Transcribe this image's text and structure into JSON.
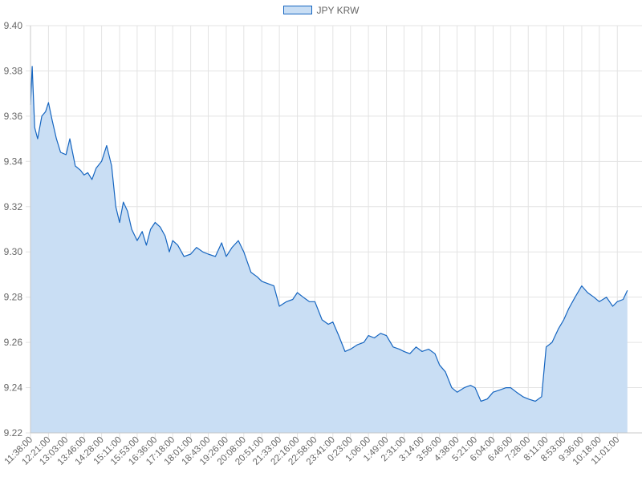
{
  "colors": {
    "line": "#1565c0",
    "fill": "#c9def4",
    "grid": "#e3e3e3",
    "axis": "#c8c8c8",
    "text": "#666666"
  },
  "chart_data": {
    "type": "area",
    "legend_position": "top-center",
    "grid": true,
    "ylim": [
      9.22,
      9.4
    ],
    "y_ticks": [
      "9.40",
      "9.38",
      "9.36",
      "9.34",
      "9.32",
      "9.30",
      "9.28",
      "9.26",
      "9.24",
      "9.22"
    ],
    "x_ticks": [
      "11:38:00",
      "12:21:00",
      "13:03:00",
      "13:46:00",
      "14:28:00",
      "15:11:00",
      "15:53:00",
      "16:36:00",
      "17:18:00",
      "18:01:00",
      "18:43:00",
      "19:26:00",
      "20:08:00",
      "20:51:00",
      "21:33:00",
      "22:16:00",
      "22:58:00",
      "23:41:00",
      "0:23:00",
      "1:06:00",
      "1:49:00",
      "2:31:00",
      "3:14:00",
      "3:56:00",
      "4:38:00",
      "5:21:00",
      "6:04:00",
      "6:46:00",
      "7:28:00",
      "8:11:00",
      "8:53:00",
      "9:36:00",
      "10:18:00",
      "11:01:00"
    ],
    "series": [
      {
        "name": "JPY KRW",
        "x": [
          "11:38:00",
          "11:42:00",
          "11:48:00",
          "11:55:00",
          "12:05:00",
          "12:14:00",
          "12:21:00",
          "12:30:00",
          "12:40:00",
          "12:50:00",
          "13:03:00",
          "13:12:00",
          "13:25:00",
          "13:38:00",
          "13:46:00",
          "13:55:00",
          "14:05:00",
          "14:15:00",
          "14:28:00",
          "14:40:00",
          "14:52:00",
          "15:02:00",
          "15:11:00",
          "15:20:00",
          "15:30:00",
          "15:40:00",
          "15:53:00",
          "16:05:00",
          "16:15:00",
          "16:25:00",
          "16:36:00",
          "16:48:00",
          "17:00:00",
          "17:10:00",
          "17:18:00",
          "17:30:00",
          "17:45:00",
          "18:01:00",
          "18:15:00",
          "18:30:00",
          "18:43:00",
          "19:00:00",
          "19:15:00",
          "19:26:00",
          "19:40:00",
          "19:55:00",
          "20:08:00",
          "20:25:00",
          "20:40:00",
          "20:51:00",
          "21:05:00",
          "21:20:00",
          "21:33:00",
          "21:50:00",
          "22:05:00",
          "22:16:00",
          "22:30:00",
          "22:45:00",
          "22:58:00",
          "23:15:00",
          "23:30:00",
          "23:41:00",
          "23:55:00",
          "0:10:00",
          "0:23:00",
          "0:40:00",
          "0:55:00",
          "1:06:00",
          "1:20:00",
          "1:35:00",
          "1:49:00",
          "2:05:00",
          "2:20:00",
          "2:31:00",
          "2:45:00",
          "3:00:00",
          "3:14:00",
          "3:30:00",
          "3:45:00",
          "3:56:00",
          "4:10:00",
          "4:25:00",
          "4:38:00",
          "4:55:00",
          "5:10:00",
          "5:21:00",
          "5:35:00",
          "5:50:00",
          "6:04:00",
          "6:20:00",
          "6:35:00",
          "6:46:00",
          "7:00:00",
          "7:15:00",
          "7:28:00",
          "7:45:00",
          "8:00:00",
          "8:11:00",
          "8:25:00",
          "8:40:00",
          "8:53:00",
          "9:05:00",
          "9:20:00",
          "9:36:00",
          "9:50:00",
          "10:05:00",
          "10:18:00",
          "10:35:00",
          "10:50:00",
          "11:01:00",
          "11:15:00",
          "11:25:00"
        ],
        "values": [
          9.365,
          9.382,
          9.355,
          9.35,
          9.36,
          9.362,
          9.366,
          9.358,
          9.35,
          9.344,
          9.343,
          9.35,
          9.338,
          9.336,
          9.334,
          9.335,
          9.332,
          9.337,
          9.34,
          9.347,
          9.338,
          9.32,
          9.313,
          9.322,
          9.318,
          9.31,
          9.305,
          9.309,
          9.303,
          9.31,
          9.313,
          9.311,
          9.307,
          9.3,
          9.305,
          9.303,
          9.298,
          9.299,
          9.302,
          9.3,
          9.299,
          9.298,
          9.304,
          9.298,
          9.302,
          9.305,
          9.3,
          9.291,
          9.289,
          9.287,
          9.286,
          9.285,
          9.276,
          9.278,
          9.279,
          9.282,
          9.28,
          9.278,
          9.278,
          9.27,
          9.268,
          9.269,
          9.263,
          9.256,
          9.257,
          9.259,
          9.26,
          9.263,
          9.262,
          9.264,
          9.263,
          9.258,
          9.257,
          9.256,
          9.255,
          9.258,
          9.256,
          9.257,
          9.255,
          9.25,
          9.247,
          9.24,
          9.238,
          9.24,
          9.241,
          9.24,
          9.234,
          9.235,
          9.238,
          9.239,
          9.24,
          9.24,
          9.238,
          9.236,
          9.235,
          9.234,
          9.236,
          9.258,
          9.26,
          9.266,
          9.27,
          9.275,
          9.28,
          9.285,
          9.282,
          9.28,
          9.278,
          9.28,
          9.276,
          9.278,
          9.279,
          9.283
        ]
      }
    ]
  }
}
